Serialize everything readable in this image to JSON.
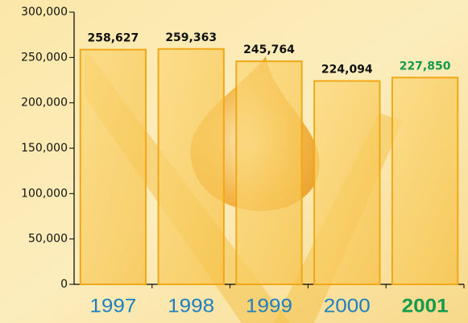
{
  "chart_data": {
    "type": "bar",
    "categories": [
      "1997",
      "1998",
      "1999",
      "2000",
      "2001"
    ],
    "category_colors": [
      "#1f7fc0",
      "#1f7fc0",
      "#1f7fc0",
      "#1f7fc0",
      "#159a4e"
    ],
    "values": [
      258627,
      259363,
      245764,
      224094,
      227850
    ],
    "value_labels": [
      "258,627",
      "259,363",
      "245,764",
      "224,094",
      "227,850"
    ],
    "value_label_colors": [
      "#111111",
      "#111111",
      "#111111",
      "#111111",
      "#159a4e"
    ],
    "color": "#f7c64a",
    "ylim": [
      0,
      300000
    ],
    "yticks": [
      0,
      {
        "value": 50000,
        "label": "50,000"
      },
      {
        "value": 100000,
        "label": "100,000"
      },
      {
        "value": 150000,
        "label": "150,000"
      },
      {
        "value": 200000,
        "label": "200,000"
      },
      {
        "value": 250000,
        "label": "250,000"
      },
      {
        "value": 300000,
        "label": "300,000"
      }
    ],
    "grid": false
  }
}
